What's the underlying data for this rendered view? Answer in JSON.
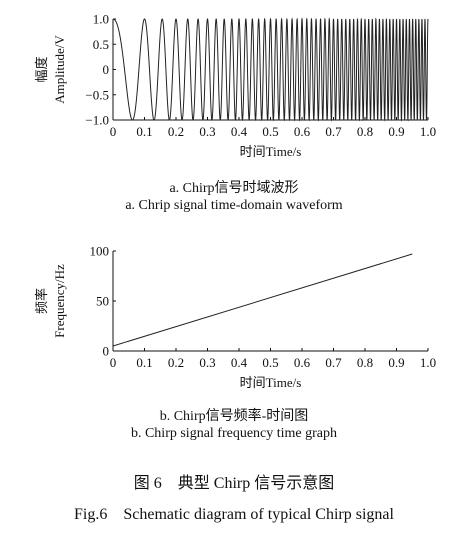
{
  "chart_data": [
    {
      "type": "line",
      "xlabel": "时间Time/s",
      "ylabel_cn": "幅度",
      "ylabel_en": "Amplitude/V",
      "xlim": [
        0,
        1.0
      ],
      "ylim": [
        -1.0,
        1.0
      ],
      "xticks": [
        "0",
        "0.1",
        "0.2",
        "0.3",
        "0.4",
        "0.5",
        "0.6",
        "0.7",
        "0.8",
        "0.9",
        "1.0"
      ],
      "yticks": [
        "1.0",
        "0.5",
        "0",
        "−0.5",
        "−1.0"
      ],
      "yticks_values": [
        1.0,
        0.5,
        0,
        -0.5,
        -1.0
      ],
      "series": [
        {
          "function": "cos(2π(f0·t + k·t²/2))",
          "f0_hz": 5,
          "k_hz_per_s": 100
        }
      ],
      "caption_cn": "a. Chirp信号时域波形",
      "caption_en": "a. Chrip signal time-domain waveform"
    },
    {
      "type": "line",
      "xlabel": "时间Time/s",
      "ylabel_cn": "频率",
      "ylabel_en": "Frequency/Hz",
      "xlim": [
        0,
        1.0
      ],
      "ylim": [
        0,
        100
      ],
      "xticks": [
        "0",
        "0.1",
        "0.2",
        "0.3",
        "0.4",
        "0.5",
        "0.6",
        "0.7",
        "0.8",
        "0.9",
        "1.0"
      ],
      "yticks": [
        "100",
        "50",
        "0"
      ],
      "yticks_values": [
        100,
        50,
        0
      ],
      "series": [
        {
          "x": [
            0,
            0.95
          ],
          "y": [
            5,
            97
          ]
        }
      ],
      "caption_cn": "b. Chirp信号频率-时间图",
      "caption_en": "b. Chirp signal frequency time graph"
    }
  ],
  "figure": {
    "caption_cn": "图 6　典型 Chirp 信号示意图",
    "caption_en": "Fig.6　Schematic diagram of typical Chirp signal"
  },
  "colors": {
    "line": "#222222",
    "axis": "#111111"
  }
}
